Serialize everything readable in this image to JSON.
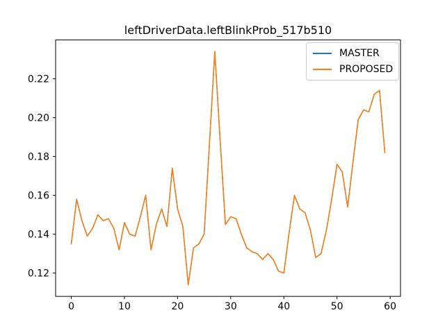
{
  "figure": {
    "title": "leftDriverData.leftBlinkProb_517b510",
    "background": "#ffffff",
    "text_color": "#000000"
  },
  "legend": {
    "entries": [
      {
        "label": "MASTER",
        "color": "#1f77b4"
      },
      {
        "label": "PROPOSED",
        "color": "#ff7f0e"
      }
    ]
  },
  "chart_data": {
    "type": "line",
    "title": "leftDriverData.leftBlinkProb_517b510",
    "xlabel": "",
    "ylabel": "",
    "grid": false,
    "legend_position": "upper right",
    "xlim": [
      -2.95,
      61.95
    ],
    "ylim": [
      0.108,
      0.24
    ],
    "xticks": [
      0,
      10,
      20,
      30,
      40,
      50,
      60
    ],
    "yticks": [
      0.12,
      0.14,
      0.16,
      0.18,
      0.2,
      0.22
    ],
    "x": [
      0,
      1,
      2,
      3,
      4,
      5,
      6,
      7,
      8,
      9,
      10,
      11,
      12,
      13,
      14,
      15,
      16,
      17,
      18,
      19,
      20,
      21,
      22,
      23,
      24,
      25,
      26,
      27,
      28,
      29,
      30,
      31,
      32,
      33,
      34,
      35,
      36,
      37,
      38,
      39,
      40,
      41,
      42,
      43,
      44,
      45,
      46,
      47,
      48,
      49,
      50,
      51,
      52,
      53,
      54,
      55,
      56,
      57,
      58,
      59
    ],
    "series": [
      {
        "name": "MASTER",
        "color": "#1f77b4",
        "values": [
          0.135,
          0.158,
          0.147,
          0.139,
          0.143,
          0.15,
          0.147,
          0.148,
          0.143,
          0.132,
          0.146,
          0.14,
          0.139,
          0.149,
          0.16,
          0.132,
          0.145,
          0.153,
          0.144,
          0.174,
          0.153,
          0.144,
          0.114,
          0.133,
          0.135,
          0.14,
          0.187,
          0.234,
          0.189,
          0.145,
          0.149,
          0.148,
          0.14,
          0.133,
          0.131,
          0.13,
          0.127,
          0.13,
          0.127,
          0.121,
          0.12,
          0.141,
          0.16,
          0.153,
          0.151,
          0.142,
          0.128,
          0.13,
          0.142,
          0.158,
          0.176,
          0.172,
          0.154,
          0.177,
          0.199,
          0.204,
          0.203,
          0.212,
          0.214,
          0.182
        ]
      },
      {
        "name": "PROPOSED",
        "color": "#ff7f0e",
        "values": [
          0.135,
          0.158,
          0.147,
          0.139,
          0.143,
          0.15,
          0.147,
          0.148,
          0.143,
          0.132,
          0.146,
          0.14,
          0.139,
          0.149,
          0.16,
          0.132,
          0.145,
          0.153,
          0.144,
          0.174,
          0.153,
          0.144,
          0.114,
          0.133,
          0.135,
          0.14,
          0.187,
          0.234,
          0.189,
          0.145,
          0.149,
          0.148,
          0.14,
          0.133,
          0.131,
          0.13,
          0.127,
          0.13,
          0.127,
          0.121,
          0.12,
          0.141,
          0.16,
          0.153,
          0.151,
          0.142,
          0.128,
          0.13,
          0.142,
          0.158,
          0.176,
          0.172,
          0.154,
          0.177,
          0.199,
          0.204,
          0.203,
          0.212,
          0.214,
          0.182
        ]
      }
    ]
  }
}
